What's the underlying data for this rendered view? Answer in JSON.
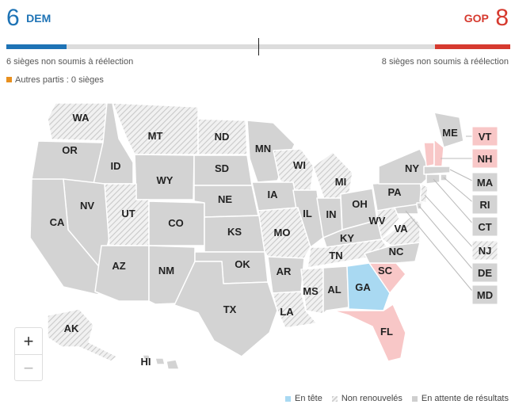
{
  "header": {
    "dem_seats": "6",
    "dem_label": "DEM",
    "gop_seats": "8",
    "gop_label": "GOP",
    "dem_not_up": "6 sièges non soumis à réélection",
    "gop_not_up": "8 sièges non soumis à réélection",
    "others": "Autres partis : 0 sièges"
  },
  "colors": {
    "dem": "#1e73b5",
    "gop": "#d63a2f",
    "others": "#e8901f",
    "leading_dem": "#a9d9f2",
    "leading_gop": "#f8c7c7",
    "pending": "#d3d3d3",
    "not_renewed": "hatched"
  },
  "bar": {
    "dem_fraction": 0.12,
    "gop_fraction": 0.15,
    "majority_mark": "50%"
  },
  "zoom": {
    "in": "+",
    "out": "−"
  },
  "legend": {
    "leading": "En tête",
    "not_renewed": "Non renouvelés",
    "pending": "En attente de résultats"
  },
  "states": {
    "WA": "not_renewed",
    "OR": "pending",
    "CA": "pending",
    "NV": "pending",
    "ID": "pending",
    "MT": "not_renewed",
    "WY": "pending",
    "UT": "not_renewed",
    "AZ": "pending",
    "CO": "pending",
    "NM": "pending",
    "ND": "not_renewed",
    "SD": "pending",
    "NE": "pending",
    "KS": "pending",
    "OK": "pending",
    "TX": "pending",
    "MN": "pending",
    "IA": "pending",
    "MO": "not_renewed",
    "AR": "pending",
    "LA": "not_renewed",
    "WI": "not_renewed",
    "IL": "pending",
    "MI": "not_renewed",
    "IN": "pending",
    "OH": "pending",
    "KY": "pending",
    "TN": "not_renewed",
    "MS": "not_renewed",
    "AL": "pending",
    "GA": "leading_dem",
    "FL": "leading_gop",
    "SC": "leading_gop",
    "NC": "pending",
    "VA": "not_renewed",
    "WV": "not_renewed",
    "PA": "pending",
    "NY": "pending",
    "ME": "pending",
    "VT": "leading_gop",
    "NH": "leading_gop",
    "MA": "pending",
    "RI": "pending",
    "CT": "pending",
    "NJ": "not_renewed",
    "DE": "pending",
    "MD": "pending",
    "AK": "not_renewed",
    "HI": "pending"
  },
  "labels": {
    "WA": "WA",
    "OR": "OR",
    "CA": "CA",
    "NV": "NV",
    "ID": "ID",
    "MT": "MT",
    "WY": "WY",
    "UT": "UT",
    "AZ": "AZ",
    "CO": "CO",
    "NM": "NM",
    "ND": "ND",
    "SD": "SD",
    "NE": "NE",
    "KS": "KS",
    "OK": "OK",
    "TX": "TX",
    "MN": "MN",
    "IA": "IA",
    "MO": "MO",
    "AR": "AR",
    "LA": "LA",
    "WI": "WI",
    "IL": "IL",
    "MI": "MI",
    "IN": "IN",
    "OH": "OH",
    "KY": "KY",
    "TN": "TN",
    "MS": "MS",
    "AL": "AL",
    "GA": "GA",
    "FL": "FL",
    "SC": "SC",
    "NC": "NC",
    "VA": "VA",
    "WV": "WV",
    "PA": "PA",
    "NY": "NY",
    "ME": "ME",
    "VT": "VT",
    "NH": "NH",
    "MA": "MA",
    "RI": "RI",
    "CT": "CT",
    "NJ": "NJ",
    "DE": "DE",
    "MD": "MD",
    "AK": "AK",
    "HI": "HI"
  }
}
